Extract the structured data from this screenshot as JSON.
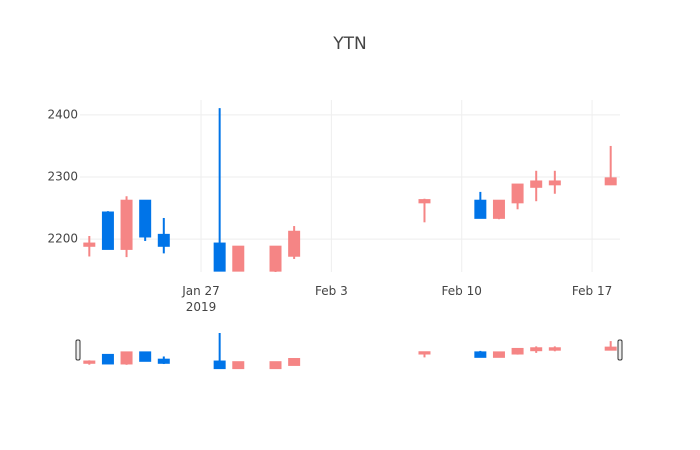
{
  "chart_data": {
    "type": "candlestick",
    "title": "YTN",
    "x": [
      "2019-01-21",
      "2019-01-22",
      "2019-01-23",
      "2019-01-24",
      "2019-01-25",
      "2019-01-28",
      "2019-01-29",
      "2019-01-31",
      "2019-02-01",
      "2019-02-08",
      "2019-02-11",
      "2019-02-12",
      "2019-02-13",
      "2019-02-14",
      "2019-02-15",
      "2019-02-18"
    ],
    "open": [
      2192,
      2185,
      2261,
      2205,
      2190,
      2150,
      2187,
      2187,
      2211,
      2262,
      2235,
      2261,
      2287,
      2292,
      2292,
      2297
    ],
    "high": [
      2205,
      2245,
      2269,
      2261,
      2234,
      2411,
      2187,
      2187,
      2221,
      2265,
      2276,
      2261,
      2288,
      2310,
      2310,
      2350
    ],
    "low": [
      2172,
      2185,
      2171,
      2197,
      2177,
      2150,
      2148,
      2147,
      2168,
      2227,
      2235,
      2232,
      2248,
      2261,
      2273,
      2287
    ],
    "close": [
      2190,
      2242,
      2185,
      2261,
      2206,
      2192,
      2150,
      2150,
      2174,
      2260,
      2261,
      2235,
      2260,
      2285,
      2289,
      2289
    ],
    "increasing_color": "#0074e8",
    "decreasing_color": "#f58585",
    "xlim": [
      "2019-01-20T12:00",
      "2019-02-18T12:00"
    ],
    "xticks": [
      {
        "value": "2019-01-27",
        "label": "Jan 27\n2019"
      },
      {
        "value": "2019-02-03",
        "label": "Feb 3"
      },
      {
        "value": "2019-02-10",
        "label": "Feb 10"
      },
      {
        "value": "2019-02-17",
        "label": "Feb 17"
      }
    ],
    "ylim": [
      2147,
      2424
    ],
    "yticks": [
      2200,
      2300,
      2400
    ],
    "grid": true,
    "rangeslider": true
  }
}
